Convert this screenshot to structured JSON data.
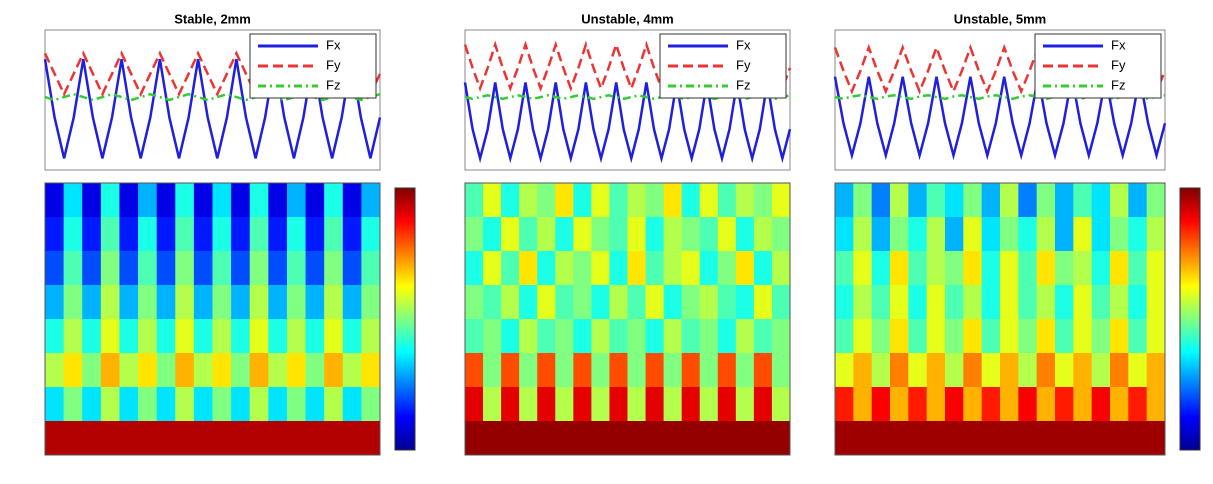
{
  "chart_data": [
    {
      "type": "line",
      "title": "Stable, 2mm",
      "legend": "upper right",
      "ylim": [
        -1.2,
        1.2
      ],
      "series": [
        {
          "name": "Fx",
          "color": "#1f1fe0",
          "linestyle": "solid",
          "values": [
            0.7,
            -0.3,
            -1,
            -0.3,
            0.7,
            -0.3,
            -1,
            -0.3,
            0.7,
            -0.3,
            -1,
            -0.3,
            0.7,
            -0.3,
            -1,
            -0.3,
            0.7,
            -0.3,
            -1,
            -0.3,
            0.7,
            -0.3,
            -1,
            -0.3,
            0.7,
            -0.3,
            -1,
            -0.3,
            0.7,
            -0.3,
            -1,
            -0.3,
            0.7,
            -0.3,
            -1,
            -0.3
          ]
        },
        {
          "name": "Fy",
          "color": "#ee3333",
          "linestyle": "dashed",
          "values": [
            0.8,
            0.45,
            0.1,
            0.45,
            0.8,
            0.45,
            0.1,
            0.45,
            0.8,
            0.45,
            0.1,
            0.45,
            0.8,
            0.45,
            0.1,
            0.45,
            0.8,
            0.45,
            0.1,
            0.45,
            0.8,
            0.45,
            0.1,
            0.45,
            0.8,
            0.45,
            0.1,
            0.45,
            0.8,
            0.45,
            0.1,
            0.45,
            0.8,
            0.45,
            0.1,
            0.45
          ]
        },
        {
          "name": "Fz",
          "color": "#33cc33",
          "linestyle": "dashdot",
          "values": [
            0.05,
            0,
            0.05,
            0.1,
            0.05,
            0,
            0.05,
            0.1,
            0.05,
            0,
            0.05,
            0.1,
            0.05,
            0,
            0.05,
            0.1,
            0.05,
            0,
            0.05,
            0.1,
            0.05,
            0,
            0.05,
            0.1,
            0.05,
            0,
            0.05,
            0.1,
            0.05,
            0,
            0.05,
            0.1,
            0.05,
            0,
            0.05,
            0.1
          ]
        }
      ]
    },
    {
      "type": "heatmap",
      "colormap": "jet",
      "colorbar": true,
      "zlim": [
        0,
        1
      ],
      "z": [
        [
          0.1,
          0.35,
          0.1,
          0.4,
          0.1,
          0.3,
          0.1,
          0.4,
          0.1,
          0.35,
          0.1,
          0.4,
          0.1,
          0.3,
          0.1,
          0.4,
          0.1,
          0.3
        ],
        [
          0.15,
          0.4,
          0.15,
          0.45,
          0.15,
          0.4,
          0.15,
          0.45,
          0.15,
          0.4,
          0.15,
          0.45,
          0.15,
          0.4,
          0.15,
          0.45,
          0.15,
          0.4
        ],
        [
          0.2,
          0.45,
          0.2,
          0.5,
          0.2,
          0.45,
          0.2,
          0.5,
          0.2,
          0.45,
          0.2,
          0.5,
          0.2,
          0.45,
          0.2,
          0.5,
          0.2,
          0.45
        ],
        [
          0.3,
          0.5,
          0.3,
          0.55,
          0.3,
          0.5,
          0.3,
          0.55,
          0.3,
          0.5,
          0.3,
          0.55,
          0.3,
          0.5,
          0.3,
          0.55,
          0.3,
          0.5
        ],
        [
          0.4,
          0.55,
          0.4,
          0.6,
          0.4,
          0.55,
          0.4,
          0.6,
          0.4,
          0.55,
          0.4,
          0.6,
          0.4,
          0.55,
          0.4,
          0.6,
          0.4,
          0.55
        ],
        [
          0.55,
          0.65,
          0.5,
          0.7,
          0.55,
          0.65,
          0.5,
          0.7,
          0.55,
          0.65,
          0.5,
          0.7,
          0.55,
          0.65,
          0.5,
          0.7,
          0.55,
          0.65
        ],
        [
          0.35,
          0.5,
          0.35,
          0.55,
          0.35,
          0.5,
          0.35,
          0.55,
          0.35,
          0.5,
          0.35,
          0.55,
          0.35,
          0.5,
          0.35,
          0.55,
          0.35,
          0.5
        ],
        [
          0.95,
          0.95,
          0.95,
          0.95,
          0.95,
          0.95,
          0.95,
          0.95,
          0.95,
          0.95,
          0.95,
          0.95,
          0.95,
          0.95,
          0.95,
          0.95,
          0.95,
          0.95
        ]
      ]
    },
    {
      "type": "line",
      "title": "Unstable, 4mm",
      "legend": "upper right",
      "ylim": [
        -1.2,
        1.2
      ],
      "series": [
        {
          "name": "Fx",
          "color": "#1f1fe0",
          "linestyle": "solid",
          "values": [
            0.3,
            -0.5,
            -1,
            -0.5,
            0.3,
            -0.5,
            -1,
            -0.5,
            0.3,
            -0.5,
            -1,
            -0.5,
            0.3,
            -0.5,
            -1,
            -0.5,
            0.3,
            -0.5,
            -1,
            -0.5,
            0.3,
            -0.5,
            -1,
            -0.5,
            0.3,
            -0.5,
            -1,
            -0.5,
            0.3,
            -0.5,
            -1,
            -0.5,
            0.3,
            -0.5,
            -1,
            -0.5,
            0.3,
            -0.5,
            -1,
            -0.5,
            0.3,
            -0.5,
            -1,
            -0.5
          ]
        },
        {
          "name": "Fy",
          "color": "#ee3333",
          "linestyle": "dashed",
          "values": [
            0.95,
            0.55,
            0.2,
            0.55,
            0.95,
            0.55,
            0.2,
            0.55,
            0.95,
            0.55,
            0.2,
            0.55,
            0.95,
            0.55,
            0.2,
            0.55,
            0.95,
            0.55,
            0.2,
            0.55,
            0.95,
            0.55,
            0.2,
            0.55,
            0.95,
            0.55,
            0.2,
            0.55,
            0.95,
            0.55,
            0.2,
            0.55,
            0.95,
            0.55,
            0.2,
            0.55,
            0.95,
            0.55,
            0.2,
            0.55,
            0.95,
            0.55,
            0.2,
            0.55
          ]
        },
        {
          "name": "Fz",
          "color": "#33cc33",
          "linestyle": "dashdot",
          "values": [
            0.05,
            0.02,
            0.05,
            0.08,
            0.05,
            0.02,
            0.05,
            0.08,
            0.05,
            0.02,
            0.05,
            0.08,
            0.05,
            0.02,
            0.05,
            0.08,
            0.05,
            0.02,
            0.05,
            0.08,
            0.05,
            0.02,
            0.05,
            0.08,
            0.05,
            0.02,
            0.05,
            0.08,
            0.05,
            0.02,
            0.05,
            0.08,
            0.05,
            0.02,
            0.05,
            0.08,
            0.05,
            0.02,
            0.05,
            0.08,
            0.05,
            0.02,
            0.05,
            0.08
          ]
        }
      ]
    },
    {
      "type": "heatmap",
      "colormap": "jet",
      "colorbar": false,
      "zlim": [
        0,
        1
      ],
      "z": [
        [
          0.45,
          0.6,
          0.4,
          0.55,
          0.5,
          0.65,
          0.4,
          0.6,
          0.45,
          0.55,
          0.5,
          0.65,
          0.4,
          0.6,
          0.45,
          0.55,
          0.5,
          0.6
        ],
        [
          0.5,
          0.4,
          0.6,
          0.45,
          0.55,
          0.4,
          0.6,
          0.5,
          0.45,
          0.6,
          0.4,
          0.55,
          0.5,
          0.45,
          0.6,
          0.4,
          0.55,
          0.5
        ],
        [
          0.4,
          0.6,
          0.45,
          0.65,
          0.4,
          0.55,
          0.5,
          0.6,
          0.4,
          0.65,
          0.45,
          0.55,
          0.6,
          0.4,
          0.5,
          0.65,
          0.4,
          0.55
        ],
        [
          0.5,
          0.45,
          0.55,
          0.4,
          0.6,
          0.45,
          0.5,
          0.4,
          0.55,
          0.45,
          0.6,
          0.4,
          0.5,
          0.55,
          0.45,
          0.4,
          0.6,
          0.45
        ],
        [
          0.45,
          0.5,
          0.4,
          0.55,
          0.45,
          0.5,
          0.4,
          0.55,
          0.45,
          0.5,
          0.4,
          0.55,
          0.45,
          0.5,
          0.4,
          0.55,
          0.45,
          0.5
        ],
        [
          0.8,
          0.5,
          0.8,
          0.5,
          0.8,
          0.5,
          0.8,
          0.5,
          0.8,
          0.5,
          0.8,
          0.5,
          0.8,
          0.5,
          0.8,
          0.5,
          0.8,
          0.5
        ],
        [
          0.9,
          0.55,
          0.9,
          0.55,
          0.9,
          0.55,
          0.9,
          0.55,
          0.9,
          0.55,
          0.9,
          0.55,
          0.9,
          0.55,
          0.9,
          0.55,
          0.9,
          0.55
        ],
        [
          0.98,
          0.98,
          0.98,
          0.98,
          0.98,
          0.98,
          0.98,
          0.98,
          0.98,
          0.98,
          0.98,
          0.98,
          0.98,
          0.98,
          0.98,
          0.98,
          0.98,
          0.98
        ]
      ]
    },
    {
      "type": "line",
      "title": "Unstable, 5mm",
      "legend": "upper right",
      "ylim": [
        -1.2,
        1.2
      ],
      "series": [
        {
          "name": "Fx",
          "color": "#1f1fe0",
          "linestyle": "solid",
          "values": [
            0.4,
            -0.4,
            -0.95,
            -0.4,
            0.4,
            -0.4,
            -0.95,
            -0.4,
            0.4,
            -0.4,
            -0.95,
            -0.4,
            0.4,
            -0.4,
            -0.95,
            -0.4,
            0.4,
            -0.4,
            -0.95,
            -0.4,
            0.4,
            -0.4,
            -0.95,
            -0.4,
            0.4,
            -0.4,
            -0.95,
            -0.4,
            0.4,
            -0.4,
            -0.95,
            -0.4,
            0.4,
            -0.4,
            -0.95,
            -0.4,
            0.4,
            -0.4,
            -0.95,
            -0.4
          ]
        },
        {
          "name": "Fy",
          "color": "#ee3333",
          "linestyle": "dashed",
          "values": [
            0.9,
            0.5,
            0.15,
            0.5,
            0.9,
            0.5,
            0.15,
            0.5,
            0.9,
            0.5,
            0.15,
            0.5,
            0.9,
            0.5,
            0.15,
            0.5,
            0.9,
            0.5,
            0.15,
            0.5,
            0.9,
            0.5,
            0.15,
            0.5,
            0.9,
            0.5,
            0.15,
            0.5,
            0.9,
            0.5,
            0.15,
            0.5,
            0.9,
            0.5,
            0.15,
            0.5,
            0.9,
            0.5,
            0.15,
            0.5
          ]
        },
        {
          "name": "Fz",
          "color": "#33cc33",
          "linestyle": "dashdot",
          "values": [
            0.05,
            0.02,
            0.06,
            0.08,
            0.05,
            0.02,
            0.06,
            0.08,
            0.05,
            0.02,
            0.06,
            0.08,
            0.05,
            0.02,
            0.06,
            0.08,
            0.05,
            0.02,
            0.06,
            0.08,
            0.05,
            0.02,
            0.06,
            0.08,
            0.05,
            0.02,
            0.06,
            0.08,
            0.05,
            0.02,
            0.06,
            0.08,
            0.05,
            0.02,
            0.06,
            0.08,
            0.05,
            0.02,
            0.06,
            0.08
          ]
        }
      ]
    },
    {
      "type": "heatmap",
      "colormap": "jet",
      "colorbar": true,
      "zlim": [
        0,
        1
      ],
      "z": [
        [
          0.3,
          0.5,
          0.25,
          0.55,
          0.3,
          0.45,
          0.35,
          0.5,
          0.3,
          0.55,
          0.25,
          0.5,
          0.3,
          0.45,
          0.35,
          0.55,
          0.3,
          0.5
        ],
        [
          0.35,
          0.55,
          0.3,
          0.5,
          0.4,
          0.55,
          0.3,
          0.6,
          0.35,
          0.5,
          0.4,
          0.55,
          0.3,
          0.6,
          0.35,
          0.5,
          0.4,
          0.55
        ],
        [
          0.45,
          0.6,
          0.4,
          0.65,
          0.45,
          0.55,
          0.5,
          0.65,
          0.4,
          0.6,
          0.45,
          0.65,
          0.5,
          0.55,
          0.4,
          0.65,
          0.45,
          0.6
        ],
        [
          0.4,
          0.55,
          0.45,
          0.6,
          0.4,
          0.6,
          0.45,
          0.55,
          0.4,
          0.6,
          0.45,
          0.55,
          0.4,
          0.6,
          0.45,
          0.55,
          0.4,
          0.6
        ],
        [
          0.45,
          0.6,
          0.5,
          0.65,
          0.45,
          0.6,
          0.5,
          0.65,
          0.45,
          0.6,
          0.5,
          0.65,
          0.45,
          0.6,
          0.5,
          0.65,
          0.45,
          0.6
        ],
        [
          0.6,
          0.7,
          0.55,
          0.75,
          0.6,
          0.7,
          0.55,
          0.75,
          0.6,
          0.7,
          0.55,
          0.75,
          0.6,
          0.7,
          0.55,
          0.75,
          0.6,
          0.7
        ],
        [
          0.85,
          0.7,
          0.88,
          0.7,
          0.85,
          0.7,
          0.88,
          0.7,
          0.85,
          0.7,
          0.88,
          0.7,
          0.85,
          0.7,
          0.88,
          0.7,
          0.85,
          0.7
        ],
        [
          0.97,
          0.97,
          0.97,
          0.97,
          0.97,
          0.97,
          0.97,
          0.97,
          0.97,
          0.97,
          0.97,
          0.97,
          0.97,
          0.97,
          0.97,
          0.97,
          0.97,
          0.97
        ]
      ]
    }
  ]
}
